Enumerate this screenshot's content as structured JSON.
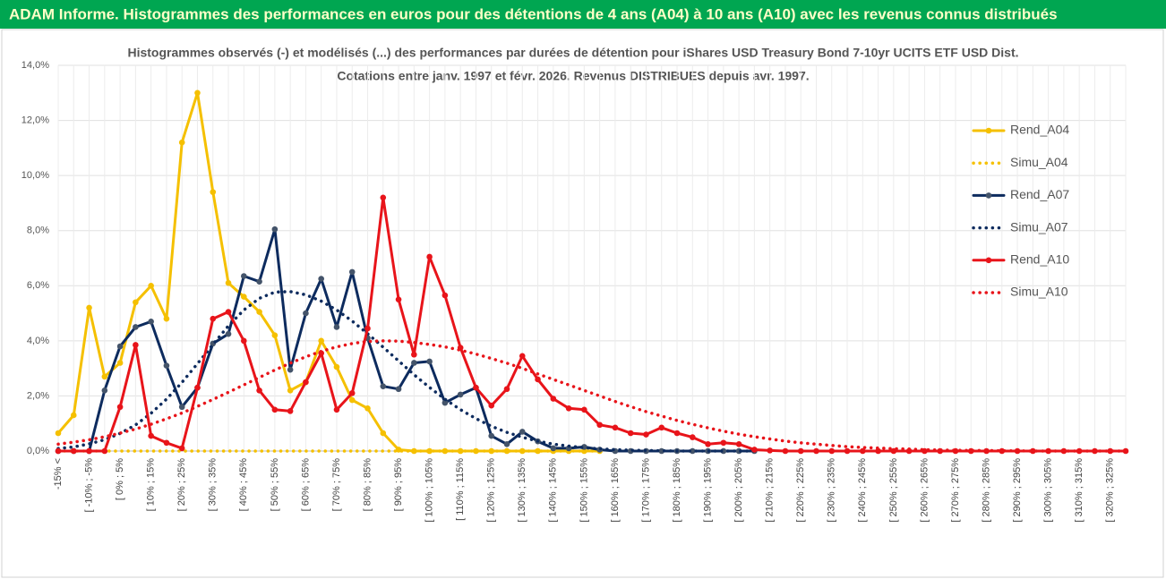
{
  "chart_data": {
    "type": "line",
    "header": "ADAM Informe. Histogrammes des performances en euros pour des détentions de 4 ans (A04) à 10 ans (A10) avec les revenus connus distribués",
    "title": "Histogrammes observés (-) et modélisés (...) des performances par durées de détention pour iShares USD Treasury Bond 7-10yr UCITS ETF USD Dist.",
    "subtitle": "Cotations entre janv. 1997 et févr. 2026. Revenus DISTRIBUES depuis avr. 1997.",
    "categories": [
      "-15% <",
      null,
      "[ -10% ; -5%",
      null,
      "[ 0% ; 5%",
      null,
      "[ 10% ; 15%",
      null,
      "[ 20% ; 25%",
      null,
      "[ 30% ; 35%",
      null,
      "[ 40% ; 45%",
      null,
      "[ 50% ; 55%",
      null,
      "[ 60% ; 65%",
      null,
      "[ 70% ; 75%",
      null,
      "[ 80% ; 85%",
      null,
      "[ 90% ; 95%",
      null,
      "[ 100% ; 105%",
      null,
      "[ 110% ; 115%",
      null,
      "[ 120% ; 125%",
      null,
      "[ 130% ; 135%",
      null,
      "[ 140% ; 145%",
      null,
      "[ 150% ; 155%",
      null,
      "[ 160% ; 165%",
      null,
      "[ 170% ; 175%",
      null,
      "[ 180% ; 185%",
      null,
      "[ 190% ; 195%",
      null,
      "[ 200% ; 205%",
      null,
      "[ 210% ; 215%",
      null,
      "[ 220% ; 225%",
      null,
      "[ 230% ; 235%",
      null,
      "[ 240% ; 245%",
      null,
      "[ 250% ; 255%",
      null,
      "[ 260% ; 265%",
      null,
      "[ 270% ; 275%",
      null,
      "[ 280% ; 285%",
      null,
      "[ 290% ; 295%",
      null,
      "[ 300% ; 305%",
      null,
      "[ 310% ; 315%",
      null,
      "[ 320% ; 325%",
      null
    ],
    "series": [
      {
        "name": "Rend_A04",
        "color": "#f5c000",
        "dash": "solid",
        "markers": true,
        "values": [
          0.65,
          1.3,
          5.2,
          2.7,
          3.2,
          5.4,
          6.0,
          4.8,
          11.2,
          13.0,
          9.4,
          6.1,
          5.6,
          5.05,
          4.2,
          2.2,
          2.5,
          4.0,
          3.05,
          1.85,
          1.55,
          0.65,
          0.05,
          0,
          0,
          0,
          0,
          0,
          0,
          0,
          0,
          0,
          0,
          0,
          0,
          0,
          null,
          null,
          null,
          null,
          null,
          null,
          null,
          null,
          null,
          null,
          null,
          null,
          null,
          null,
          null,
          null,
          null,
          null,
          null,
          null,
          null,
          null,
          null,
          null,
          null,
          null,
          null,
          null,
          null,
          null,
          null,
          null,
          null,
          null
        ]
      },
      {
        "name": "Simu_A04",
        "color": "#f5c000",
        "dash": "dotted",
        "markers": false,
        "values": [
          0,
          0,
          0,
          0,
          0,
          0,
          0,
          0,
          0,
          0,
          0,
          0,
          0,
          0,
          0,
          0,
          0,
          0,
          0,
          0,
          0,
          0,
          0,
          0,
          0,
          0,
          0,
          0,
          0,
          0,
          0,
          0,
          0,
          0,
          0,
          0,
          null,
          null,
          null,
          null,
          null,
          null,
          null,
          null,
          null,
          null,
          null,
          null,
          null,
          null,
          null,
          null,
          null,
          null,
          null,
          null,
          null,
          null,
          null,
          null,
          null,
          null,
          null,
          null,
          null,
          null,
          null,
          null,
          null,
          null
        ]
      },
      {
        "name": "Rend_A07",
        "color": "#0d2b5e",
        "dash": "solid",
        "markers": true,
        "values": [
          0,
          0,
          0,
          2.2,
          3.8,
          4.5,
          4.7,
          3.1,
          1.6,
          2.3,
          3.9,
          4.25,
          6.35,
          6.15,
          8.05,
          2.95,
          5.0,
          6.25,
          4.5,
          6.5,
          4.1,
          2.35,
          2.25,
          3.2,
          3.25,
          1.75,
          2.05,
          2.3,
          0.55,
          0.25,
          0.7,
          0.35,
          0.1,
          0.1,
          0.15,
          0.05,
          0,
          0,
          0,
          0,
          0,
          0,
          0,
          0,
          0,
          0,
          null,
          null,
          null,
          null,
          null,
          null,
          null,
          null,
          null,
          null,
          null,
          null,
          null,
          null,
          null,
          null,
          null,
          null,
          null,
          null,
          null,
          null,
          null,
          null
        ]
      },
      {
        "name": "Simu_A07",
        "color": "#0d2b5e",
        "dash": "dotted",
        "markers": false,
        "values": [
          0.09,
          0.15,
          0.26,
          0.41,
          0.64,
          0.95,
          1.37,
          1.88,
          2.49,
          3.17,
          3.87,
          4.54,
          5.12,
          5.54,
          5.77,
          5.79,
          5.67,
          5.44,
          5.12,
          4.72,
          4.26,
          3.77,
          3.27,
          2.77,
          2.31,
          1.88,
          1.5,
          1.18,
          0.9,
          0.68,
          0.5,
          0.36,
          0.25,
          0.18,
          0.12,
          0.08,
          0.05,
          0.03,
          0.02,
          0.01,
          0,
          0,
          0,
          0,
          0,
          0,
          null,
          null,
          null,
          null,
          null,
          null,
          null,
          null,
          null,
          null,
          null,
          null,
          null,
          null,
          null,
          null,
          null,
          null,
          null,
          null,
          null,
          null,
          null,
          null
        ]
      },
      {
        "name": "Rend_A10",
        "color": "#e8141a",
        "dash": "solid",
        "markers": true,
        "values": [
          0,
          0,
          0,
          0,
          1.6,
          3.85,
          0.55,
          0.3,
          0.1,
          2.3,
          4.8,
          5.05,
          4.0,
          2.2,
          1.5,
          1.45,
          2.5,
          3.55,
          1.5,
          2.1,
          4.45,
          9.2,
          5.5,
          3.5,
          7.05,
          5.65,
          3.75,
          2.3,
          1.65,
          2.25,
          3.45,
          2.6,
          1.9,
          1.55,
          1.5,
          0.95,
          0.85,
          0.65,
          0.6,
          0.85,
          0.65,
          0.5,
          0.25,
          0.3,
          0.25,
          0.05,
          0.02,
          0,
          0,
          0,
          0,
          0,
          0,
          0,
          0,
          0,
          0,
          0,
          0,
          0,
          0,
          0,
          0,
          0,
          0,
          0,
          0,
          0,
          0,
          0
        ]
      },
      {
        "name": "Simu_A10",
        "color": "#e8141a",
        "dash": "dotted",
        "markers": false,
        "values": [
          0.25,
          0.32,
          0.41,
          0.52,
          0.65,
          0.8,
          0.97,
          1.17,
          1.38,
          1.62,
          1.87,
          2.13,
          2.4,
          2.67,
          2.94,
          3.19,
          3.42,
          3.62,
          3.78,
          3.9,
          3.98,
          4.0,
          3.99,
          3.94,
          3.87,
          3.78,
          3.66,
          3.52,
          3.36,
          3.19,
          3.0,
          2.8,
          2.6,
          2.4,
          2.2,
          2.0,
          1.8,
          1.61,
          1.43,
          1.27,
          1.11,
          0.97,
          0.84,
          0.72,
          0.61,
          0.52,
          0.44,
          0.36,
          0.3,
          0.25,
          0.2,
          0.16,
          0.13,
          0.11,
          0.08,
          0.07,
          0.05,
          0.04,
          0.03,
          0.02,
          0.02,
          0.01,
          0.01,
          0,
          0,
          0,
          0,
          0,
          0,
          0
        ]
      }
    ],
    "ylim": [
      0,
      14
    ],
    "yticks": [
      {
        "value": 0,
        "label": "0,0%"
      },
      {
        "value": 2,
        "label": "2,0%"
      },
      {
        "value": 4,
        "label": "4,0%"
      },
      {
        "value": 6,
        "label": "6,0%"
      },
      {
        "value": 8,
        "label": "8,0%"
      },
      {
        "value": 10,
        "label": "10,0%"
      },
      {
        "value": 12,
        "label": "12,0%"
      },
      {
        "value": 14,
        "label": "14,0%"
      }
    ],
    "grid": true,
    "legend": "right"
  }
}
